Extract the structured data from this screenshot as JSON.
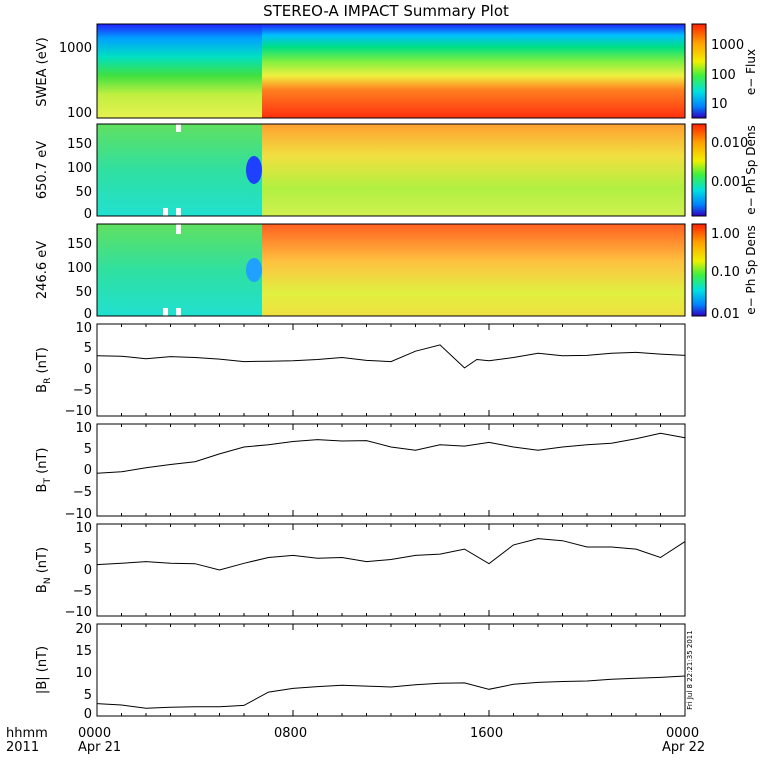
{
  "title": "STEREO-A IMPACT Summary Plot",
  "stamp": "Fri Jul  8 22:21:35 2011",
  "footer": {
    "row_label": "hhmm",
    "year_label": "2011",
    "x_ticks": [
      "0000",
      "0800",
      "1600",
      "0000"
    ],
    "date_start": "Apr 21",
    "date_end": "Apr 22"
  },
  "chart_data": [
    {
      "type": "heatmap",
      "name": "swea",
      "ylabel": "SWEA (eV)",
      "colorbar_label": "e− Flux",
      "y_scale": "log",
      "y_ticks": [
        "1000",
        "100"
      ],
      "colorbar_ticks": [
        "1000",
        "100",
        "10"
      ],
      "transition_hour": 6.5
    },
    {
      "type": "heatmap",
      "name": "pad650",
      "ylabel": "650.7 eV",
      "colorbar_label": "e− Ph Sp Dens",
      "ylim": [
        0,
        180
      ],
      "y_ticks": [
        "150",
        "100",
        "50",
        "0"
      ],
      "colorbar_ticks": [
        "0.010",
        "0.001"
      ],
      "colorbar_scale": "log"
    },
    {
      "type": "heatmap",
      "name": "pad246",
      "ylabel": "246.6 eV",
      "colorbar_label": "e− Ph Sp Dens",
      "ylim": [
        0,
        180
      ],
      "y_ticks": [
        "150",
        "100",
        "50",
        "0"
      ],
      "colorbar_ticks": [
        "1.00",
        "0.10",
        "0.01"
      ],
      "colorbar_scale": "log"
    },
    {
      "type": "line",
      "name": "br",
      "ylabel_main": "B",
      "ylabel_sub": "R",
      "ylabel_unit": " (nT)",
      "ylim": [
        -12,
        10
      ],
      "y_ticks": [
        "10",
        "5",
        "0",
        "−5",
        "−10"
      ],
      "x": [
        0,
        1,
        2,
        3,
        4,
        5,
        6,
        7,
        8,
        9,
        10,
        11,
        12,
        13,
        14,
        15,
        15.5,
        16,
        17,
        18,
        19,
        20,
        21,
        22,
        23,
        24
      ],
      "y": [
        2.4,
        2.3,
        1.7,
        2.2,
        2.0,
        1.6,
        1.0,
        1.1,
        1.2,
        1.5,
        2.0,
        1.3,
        1.0,
        3.5,
        5.0,
        -0.5,
        1.5,
        1.2,
        2.0,
        3.0,
        2.4,
        2.5,
        3.0,
        3.2,
        2.8,
        2.5
      ]
    },
    {
      "type": "line",
      "name": "bt",
      "ylabel_main": "B",
      "ylabel_sub": "T",
      "ylabel_unit": " (nT)",
      "ylim": [
        -10,
        10
      ],
      "y_ticks": [
        "10",
        "5",
        "0",
        "−5",
        "−10"
      ],
      "x": [
        0,
        1,
        2,
        3,
        4,
        5,
        6,
        7,
        8,
        9,
        10,
        11,
        12,
        13,
        14,
        15,
        16,
        17,
        18,
        19,
        20,
        21,
        22,
        23,
        24
      ],
      "y": [
        -0.7,
        -0.4,
        0.5,
        1.2,
        1.8,
        3.5,
        5.0,
        5.5,
        6.2,
        6.6,
        6.3,
        6.4,
        5.0,
        4.3,
        5.5,
        5.2,
        6.0,
        5.0,
        4.3,
        5.0,
        5.5,
        5.8,
        6.8,
        8.0,
        7.0
      ]
    },
    {
      "type": "line",
      "name": "bn",
      "ylabel_main": "B",
      "ylabel_sub": "N",
      "ylabel_unit": " (nT)",
      "ylim": [
        -12,
        10
      ],
      "y_ticks": [
        "10",
        "5",
        "0",
        "−5",
        "−10"
      ],
      "x": [
        0,
        1,
        2,
        3,
        4,
        5,
        6,
        7,
        8,
        9,
        10,
        11,
        12,
        13,
        14,
        15,
        16,
        17,
        18,
        19,
        20,
        21,
        22,
        23,
        24
      ],
      "y": [
        0.3,
        0.6,
        1.0,
        0.6,
        0.5,
        -1.0,
        0.6,
        2.0,
        2.5,
        1.8,
        2.0,
        1.0,
        1.5,
        2.5,
        2.8,
        4.0,
        0.5,
        5.0,
        6.5,
        6.0,
        4.5,
        4.5,
        4.0,
        2.0,
        5.8
      ]
    },
    {
      "type": "line",
      "name": "bmag",
      "ylabel": "|B| (nT)",
      "ylim": [
        0,
        20
      ],
      "y_ticks": [
        "20",
        "15",
        "10",
        "5",
        "0"
      ],
      "x": [
        0,
        1,
        2,
        3,
        4,
        5,
        6,
        7,
        8,
        9,
        10,
        11,
        12,
        13,
        14,
        15,
        16,
        17,
        18,
        19,
        20,
        21,
        22,
        23,
        24
      ],
      "y": [
        2.7,
        2.4,
        1.7,
        1.9,
        2.0,
        2.0,
        2.3,
        5.2,
        6.0,
        6.4,
        6.7,
        6.5,
        6.3,
        6.8,
        7.1,
        7.2,
        5.8,
        6.9,
        7.3,
        7.5,
        7.6,
        8.0,
        8.2,
        8.4,
        8.7
      ]
    }
  ]
}
